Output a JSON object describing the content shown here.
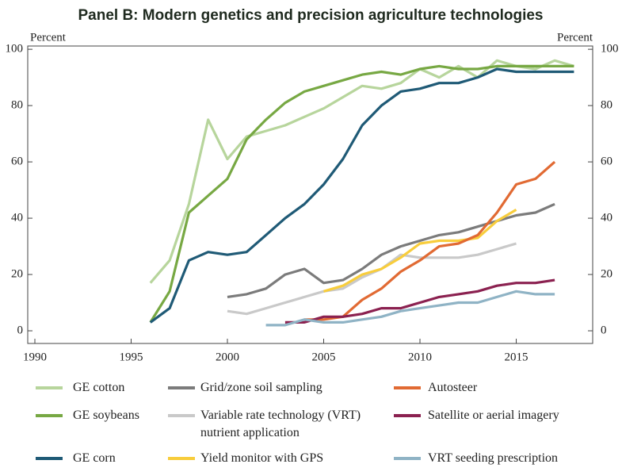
{
  "chart_data": {
    "type": "line",
    "title": "Panel B: Modern genetics and precision agriculture technologies",
    "y_label": "Percent",
    "y2_label": "Percent",
    "xlim": [
      1989.63,
      2018.97
    ],
    "xticks": [
      1990,
      1995,
      2000,
      2005,
      2010,
      2015
    ],
    "ylim": [
      -4.5,
      106.8
    ],
    "yticks": [
      0,
      20,
      40,
      60,
      80,
      100
    ],
    "y2lim": [
      -4.5,
      106.8
    ],
    "y2ticks": [
      0,
      20,
      40,
      60,
      80,
      100
    ],
    "series": [
      {
        "name": "GE cotton",
        "color": "#b7d59c",
        "x": [
          1996,
          1997,
          1998,
          1999,
          2000,
          2001,
          2002,
          2003,
          2004,
          2005,
          2006,
          2007,
          2008,
          2009,
          2010,
          2011,
          2012,
          2013,
          2014,
          2015,
          2016,
          2017,
          2018
        ],
        "values": [
          17,
          25,
          45,
          75,
          61,
          69,
          71,
          73,
          76,
          79,
          83,
          87,
          86,
          88,
          93,
          90,
          94,
          90,
          96,
          94,
          93,
          96,
          94
        ]
      },
      {
        "name": "GE soybeans",
        "color": "#77a843",
        "x": [
          1996,
          1997,
          1998,
          1999,
          2000,
          2001,
          2002,
          2003,
          2004,
          2005,
          2006,
          2007,
          2008,
          2009,
          2010,
          2011,
          2012,
          2013,
          2014,
          2015,
          2016,
          2017,
          2018
        ],
        "values": [
          3,
          14,
          42,
          48,
          54,
          68,
          75,
          81,
          85,
          87,
          89,
          91,
          92,
          91,
          93,
          94,
          93,
          93,
          94,
          94,
          94,
          94,
          94
        ]
      },
      {
        "name": "GE corn",
        "color": "#1f5a76",
        "x": [
          1996,
          1997,
          1998,
          1999,
          2000,
          2001,
          2002,
          2003,
          2004,
          2005,
          2006,
          2007,
          2008,
          2009,
          2010,
          2011,
          2012,
          2013,
          2014,
          2015,
          2016,
          2017,
          2018
        ],
        "values": [
          3,
          8,
          25,
          28,
          27,
          28,
          34,
          40,
          45,
          52,
          61,
          73,
          80,
          85,
          86,
          88,
          88,
          90,
          93,
          92,
          92,
          92,
          92
        ]
      },
      {
        "name": "Grid/zone soil sampling",
        "color": "#7b7b7b",
        "x": [
          2000,
          2001,
          2002,
          2003,
          2004,
          2005,
          2006,
          2007,
          2008,
          2009,
          2010,
          2011,
          2012,
          2013,
          2014,
          2015,
          2016,
          2017
        ],
        "values": [
          12,
          13,
          15,
          20,
          22,
          17,
          18,
          22,
          27,
          30,
          32,
          34,
          35,
          37,
          39,
          41,
          42,
          45
        ]
      },
      {
        "name": "Variable rate technology (VRT) nutrient application",
        "color": "#c9c9c9",
        "x": [
          2000,
          2001,
          2002,
          2003,
          2004,
          2005,
          2006,
          2007,
          2008,
          2009,
          2010,
          2011,
          2012,
          2013,
          2014,
          2015
        ],
        "values": [
          7,
          6,
          8,
          10,
          12,
          14,
          15,
          19,
          22,
          27,
          26,
          26,
          26,
          27,
          29,
          31
        ]
      },
      {
        "name": "Yield monitor with GPS",
        "color": "#f8cd3c",
        "x": [
          2005,
          2006,
          2007,
          2008,
          2009,
          2010,
          2011,
          2012,
          2013,
          2014,
          2015
        ],
        "values": [
          14,
          16,
          20,
          22,
          26,
          31,
          32,
          32,
          33,
          39,
          43
        ]
      },
      {
        "name": "Autosteer",
        "color": "#e16a33",
        "x": [
          2004,
          2005,
          2006,
          2007,
          2008,
          2009,
          2010,
          2011,
          2012,
          2013,
          2014,
          2015,
          2016,
          2017
        ],
        "values": [
          4,
          4,
          5,
          11,
          15,
          21,
          25,
          30,
          31,
          34,
          42,
          52,
          54,
          60
        ]
      },
      {
        "name": "Satellite or aerial imagery",
        "color": "#8b2150",
        "x": [
          2003,
          2004,
          2005,
          2006,
          2007,
          2008,
          2009,
          2010,
          2011,
          2012,
          2013,
          2014,
          2015,
          2016,
          2017
        ],
        "values": [
          3,
          3,
          5,
          5,
          6,
          8,
          8,
          10,
          12,
          13,
          14,
          16,
          17,
          17,
          18
        ]
      },
      {
        "name": "VRT seeding prescription",
        "color": "#8fb3c5",
        "x": [
          2002,
          2003,
          2004,
          2005,
          2006,
          2007,
          2008,
          2009,
          2010,
          2011,
          2012,
          2013,
          2014,
          2015,
          2016,
          2017
        ],
        "values": [
          2,
          2,
          4,
          3,
          3,
          4,
          5,
          7,
          8,
          9,
          10,
          10,
          12,
          14,
          13,
          13
        ]
      }
    ]
  }
}
